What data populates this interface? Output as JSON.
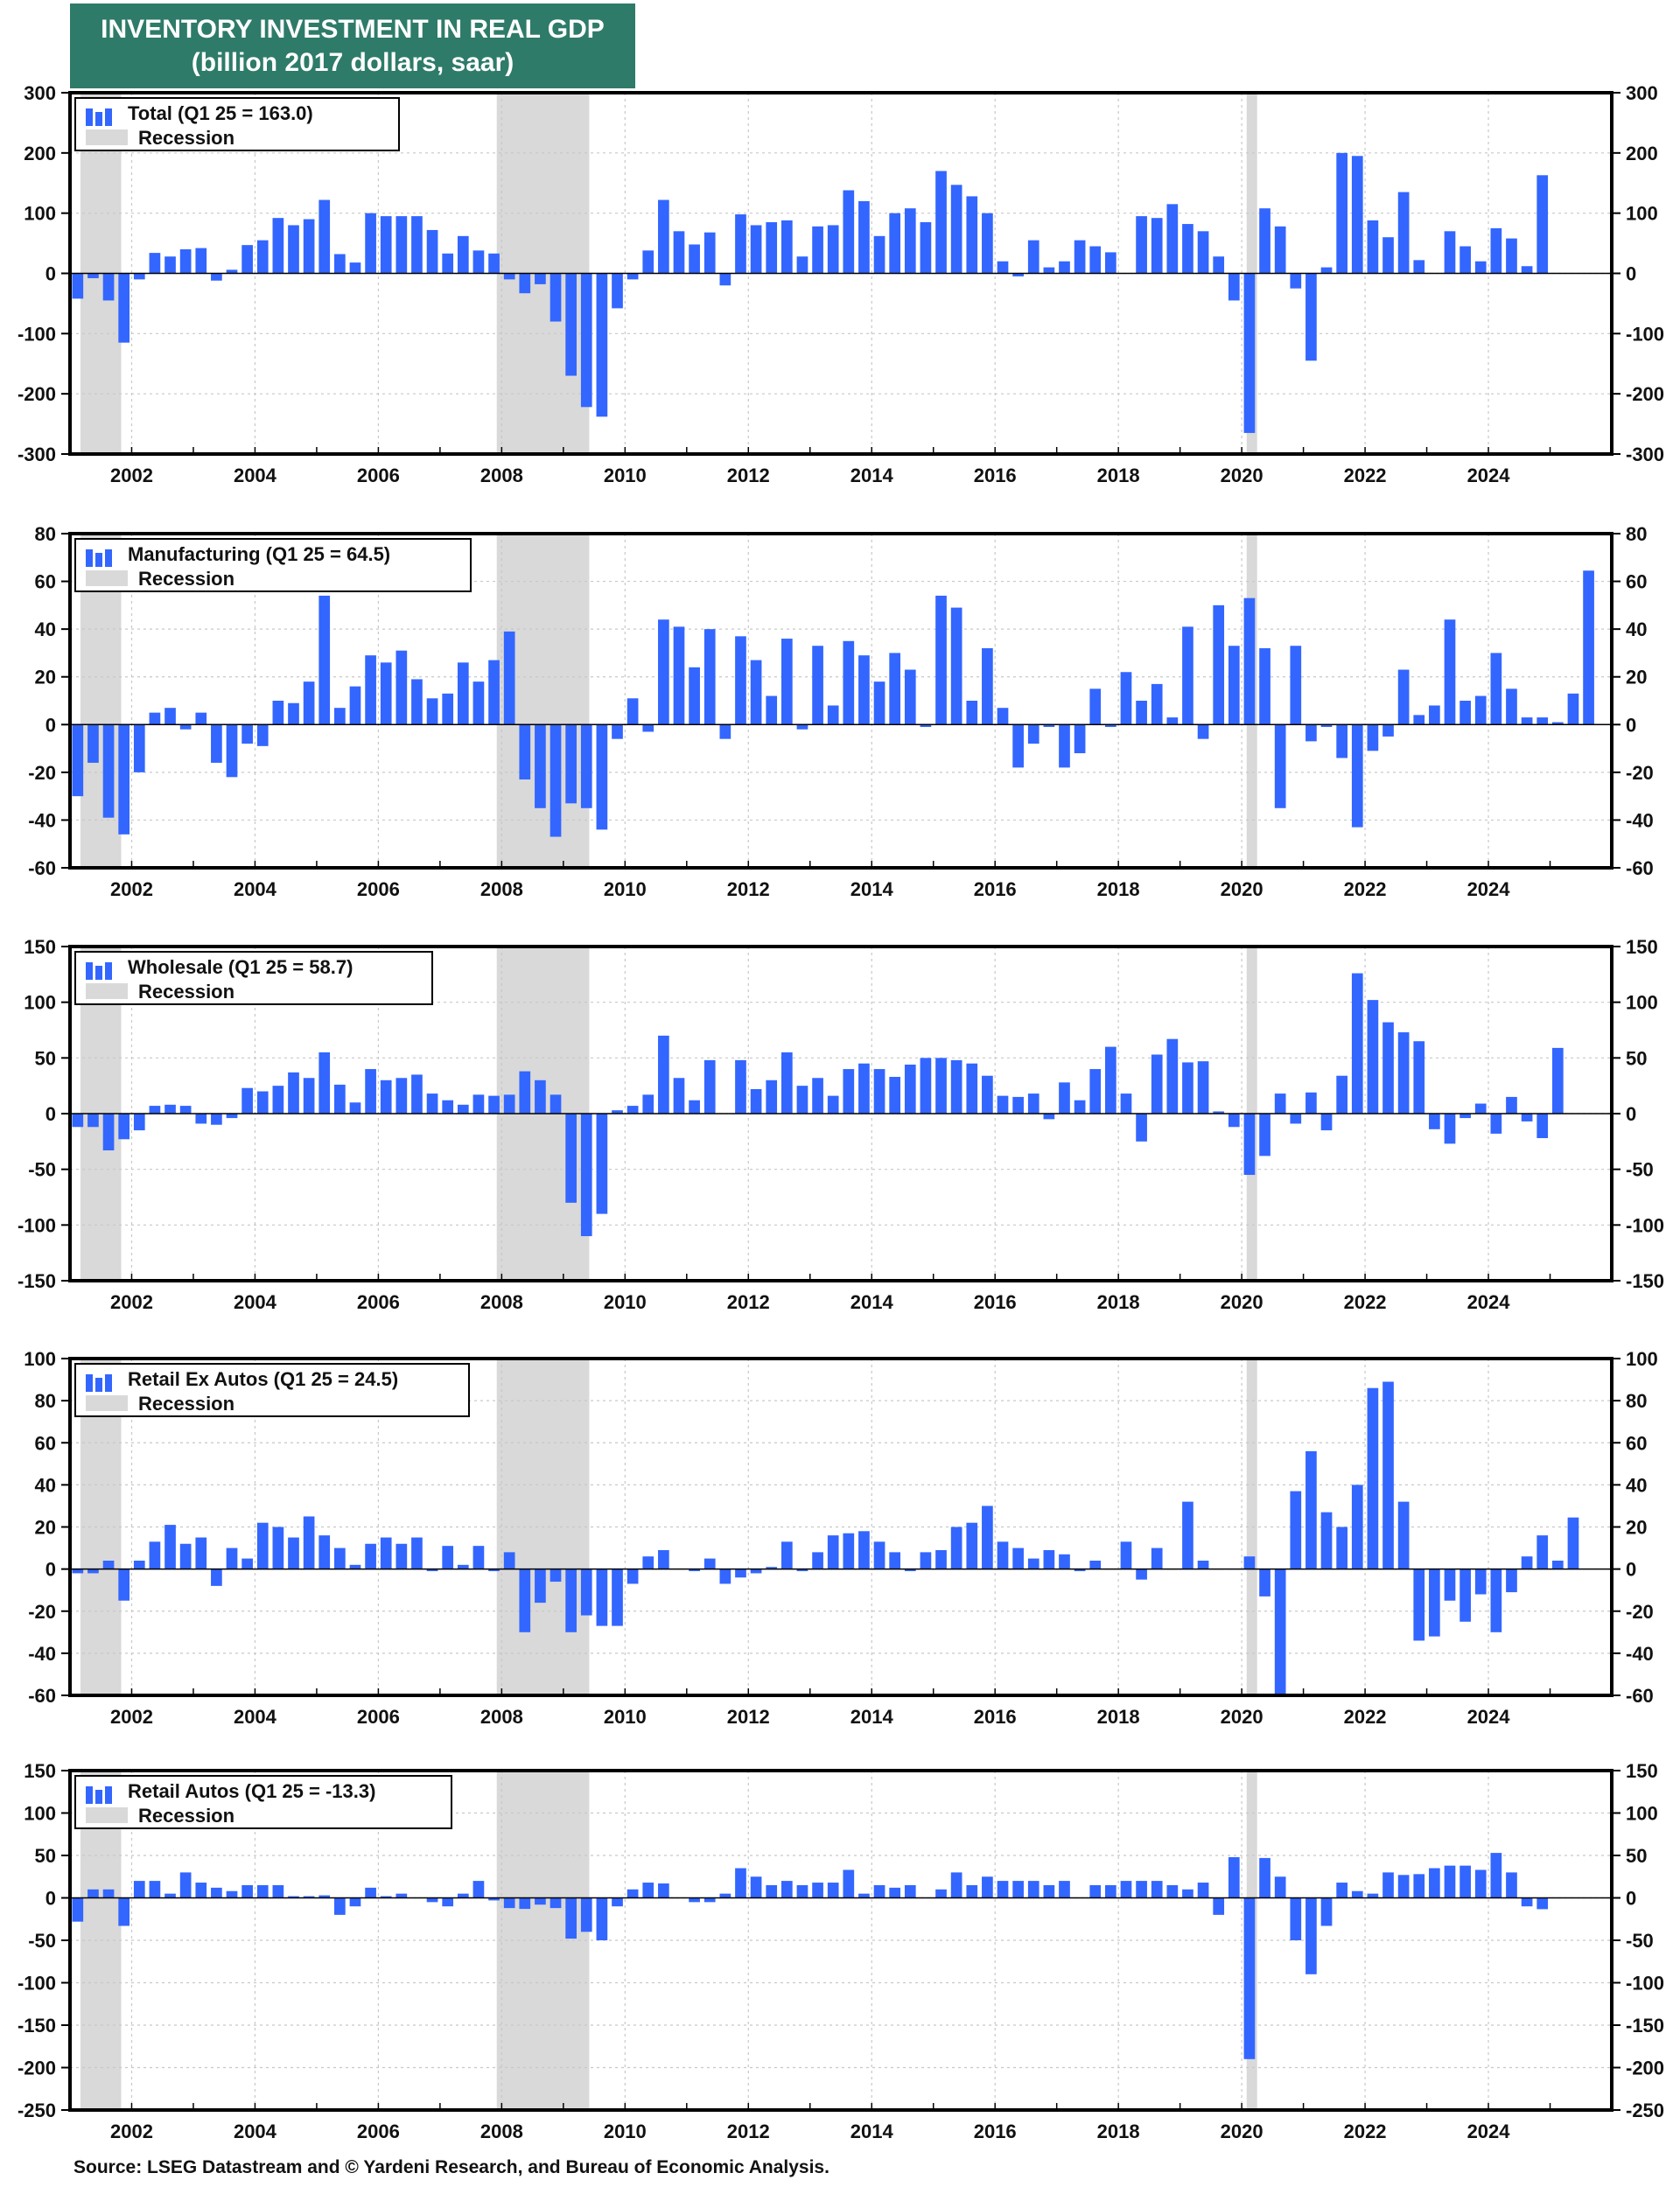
{
  "title_line1": "INVENTORY INVESTMENT IN REAL GDP",
  "title_line2": "(billion 2017 dollars, saar)",
  "source": "Source: LSEG Datastream and © Yardeni Research, and Bureau of Economic Analysis.",
  "colors": {
    "bar": "#3366ff",
    "recession": "#d9d9d9",
    "title_bg": "#2e7b69"
  },
  "recessions": [
    [
      2001.17,
      2001.83
    ],
    [
      2007.92,
      2009.42
    ],
    [
      2020.08,
      2020.25
    ]
  ],
  "x_start": 2001.0,
  "x_step": 0.25,
  "chart_data": [
    {
      "type": "bar",
      "series": [
        {
          "name": "Total  (Q1 25 = 163.0)"
        }
      ],
      "legend_entries": [
        "Total  (Q1 25 = 163.0)",
        "Recession"
      ],
      "legend_placement": "top-left",
      "xlim": [
        2001.0,
        2026.0
      ],
      "x_ticks": [
        "2002",
        "2004",
        "2006",
        "2008",
        "2010",
        "2012",
        "2014",
        "2016",
        "2018",
        "2020",
        "2022",
        "2024"
      ],
      "y_ticks": [
        "300",
        "200",
        "100",
        "0",
        "-100",
        "-200",
        "-300"
      ],
      "ylim": [
        -300,
        300
      ],
      "values": [
        -42,
        -8,
        -45,
        -115,
        -10,
        34,
        28,
        40,
        42,
        -12,
        6,
        47,
        55,
        92,
        80,
        90,
        122,
        32,
        18,
        100,
        95,
        95,
        95,
        72,
        33,
        62,
        38,
        33,
        -10,
        -33,
        -18,
        -80,
        -170,
        -222,
        -238,
        -58,
        -10,
        38,
        122,
        70,
        48,
        68,
        -20,
        98,
        80,
        85,
        88,
        28,
        78,
        80,
        138,
        120,
        62,
        100,
        108,
        85,
        170,
        147,
        128,
        100,
        20,
        -5,
        55,
        10,
        20,
        55,
        45,
        35,
        0,
        95,
        92,
        115,
        82,
        70,
        28,
        -45,
        -265,
        108,
        78,
        -25,
        -145,
        10,
        200,
        195,
        88,
        60,
        135,
        22,
        0,
        70,
        45,
        20,
        75,
        58,
        12,
        163
      ]
    },
    {
      "type": "bar",
      "series": [
        {
          "name": "Manufacturing (Q1 25 = 64.5)"
        }
      ],
      "legend_entries": [
        "Manufacturing (Q1 25 = 64.5)",
        "Recession"
      ],
      "legend_placement": "top-left",
      "xlim": [
        2001.0,
        2026.0
      ],
      "x_ticks": [
        "2002",
        "2004",
        "2006",
        "2008",
        "2010",
        "2012",
        "2014",
        "2016",
        "2018",
        "2020",
        "2022",
        "2024"
      ],
      "y_ticks": [
        "80",
        "60",
        "40",
        "20",
        "0",
        "-20",
        "-40",
        "-60"
      ],
      "ylim": [
        -60,
        80
      ],
      "values": [
        -30,
        -16,
        -39,
        -46,
        -20,
        5,
        7,
        -2,
        5,
        -16,
        -22,
        -8,
        -9,
        10,
        9,
        18,
        54,
        7,
        16,
        29,
        26,
        31,
        19,
        11,
        13,
        26,
        18,
        27,
        39,
        -23,
        -35,
        -47,
        -33,
        -35,
        -44,
        -6,
        11,
        -3,
        44,
        41,
        24,
        40,
        -6,
        37,
        27,
        12,
        36,
        -2,
        33,
        8,
        35,
        29,
        18,
        30,
        23,
        -1,
        54,
        49,
        10,
        32,
        7,
        -18,
        -8,
        -1,
        -18,
        -12,
        15,
        -1,
        22,
        10,
        17,
        3,
        41,
        -6,
        50,
        33,
        53,
        32,
        -35,
        33,
        -7,
        -1,
        -14,
        -43,
        -11,
        -5,
        23,
        4,
        8,
        44,
        10,
        12,
        30,
        15,
        3,
        3,
        1,
        13,
        64.5
      ]
    },
    {
      "type": "bar",
      "series": [
        {
          "name": "Wholesale (Q1 25 = 58.7)"
        }
      ],
      "legend_entries": [
        "Wholesale (Q1 25 = 58.7)",
        "Recession"
      ],
      "legend_placement": "top-left",
      "xlim": [
        2001.0,
        2026.0
      ],
      "x_ticks": [
        "2002",
        "2004",
        "2006",
        "2008",
        "2010",
        "2012",
        "2014",
        "2016",
        "2018",
        "2020",
        "2022",
        "2024"
      ],
      "y_ticks": [
        "150",
        "100",
        "50",
        "0",
        "-50",
        "-100",
        "-150"
      ],
      "ylim": [
        -150,
        150
      ],
      "values": [
        -12,
        -12,
        -33,
        -23,
        -15,
        7,
        8,
        7,
        -9,
        -10,
        -4,
        23,
        20,
        25,
        37,
        32,
        55,
        26,
        10,
        40,
        30,
        32,
        35,
        18,
        12,
        8,
        17,
        16,
        17,
        38,
        30,
        17,
        -80,
        -110,
        -90,
        3,
        7,
        17,
        70,
        32,
        12,
        48,
        0,
        48,
        22,
        30,
        55,
        25,
        32,
        16,
        40,
        45,
        40,
        33,
        44,
        50,
        50,
        48,
        45,
        34,
        16,
        15,
        18,
        -5,
        28,
        12,
        40,
        60,
        18,
        -25,
        53,
        67,
        46,
        47,
        2,
        -12,
        -55,
        -38,
        18,
        -9,
        19,
        -15,
        34,
        126,
        102,
        82,
        73,
        65,
        -14,
        -27,
        -4,
        9,
        -18,
        15,
        -7,
        -22,
        59
      ]
    },
    {
      "type": "bar",
      "series": [
        {
          "name": "Retail Ex Autos (Q1 25 = 24.5)"
        }
      ],
      "legend_entries": [
        "Retail Ex Autos (Q1 25 = 24.5)",
        "Recession"
      ],
      "legend_placement": "top-left",
      "xlim": [
        2001.0,
        2026.0
      ],
      "x_ticks": [
        "2002",
        "2004",
        "2006",
        "2008",
        "2010",
        "2012",
        "2014",
        "2016",
        "2018",
        "2020",
        "2022",
        "2024"
      ],
      "y_ticks": [
        "100",
        "80",
        "60",
        "40",
        "20",
        "0",
        "-20",
        "-40",
        "-60"
      ],
      "ylim": [
        -60,
        100
      ],
      "values": [
        -2,
        -2,
        4,
        -15,
        4,
        13,
        21,
        12,
        15,
        -8,
        10,
        5,
        22,
        20,
        15,
        25,
        16,
        10,
        2,
        12,
        15,
        12,
        15,
        -1,
        11,
        2,
        11,
        -1,
        8,
        -30,
        -16,
        -6,
        -30,
        -22,
        -27,
        -27,
        -7,
        6,
        9,
        0,
        -1,
        5,
        -7,
        -4,
        -2,
        1,
        13,
        -1,
        8,
        16,
        17,
        18,
        13,
        8,
        -1,
        8,
        9,
        20,
        22,
        30,
        13,
        10,
        5,
        9,
        7,
        -1,
        4,
        0,
        13,
        -5,
        10,
        0,
        32,
        4,
        0,
        0,
        6,
        -13,
        -60,
        37,
        56,
        27,
        20,
        40,
        86,
        89,
        32,
        -34,
        -32,
        -15,
        -25,
        -12,
        -30,
        -11,
        6,
        16,
        4,
        24.5
      ]
    },
    {
      "type": "bar",
      "series": [
        {
          "name": "Retail Autos (Q1 25 = -13.3)"
        }
      ],
      "legend_entries": [
        "Retail Autos (Q1 25 = -13.3)",
        "Recession"
      ],
      "legend_placement": "top-left",
      "xlim": [
        2001.0,
        2026.0
      ],
      "x_ticks": [
        "2002",
        "2004",
        "2006",
        "2008",
        "2010",
        "2012",
        "2014",
        "2016",
        "2018",
        "2020",
        "2022",
        "2024"
      ],
      "y_ticks": [
        "150",
        "100",
        "50",
        "0",
        "-50",
        "-100",
        "-150",
        "-200",
        "-250"
      ],
      "ylim": [
        -250,
        150
      ],
      "values": [
        -28,
        10,
        10,
        -33,
        20,
        20,
        5,
        30,
        18,
        12,
        8,
        15,
        15,
        15,
        2,
        2,
        3,
        -20,
        -10,
        12,
        2,
        5,
        0,
        -5,
        -10,
        5,
        20,
        -3,
        -12,
        -13,
        -8,
        -12,
        -48,
        -40,
        -50,
        -10,
        10,
        18,
        17,
        0,
        -5,
        -5,
        5,
        35,
        25,
        15,
        20,
        15,
        18,
        18,
        33,
        5,
        15,
        12,
        15,
        0,
        10,
        30,
        15,
        25,
        20,
        20,
        20,
        15,
        20,
        0,
        15,
        15,
        20,
        20,
        20,
        15,
        10,
        18,
        -20,
        48,
        -190,
        47,
        25,
        -50,
        -90,
        -33,
        18,
        8,
        5,
        30,
        27,
        28,
        35,
        38,
        38,
        33,
        53,
        30,
        -10,
        -13.3
      ]
    }
  ]
}
